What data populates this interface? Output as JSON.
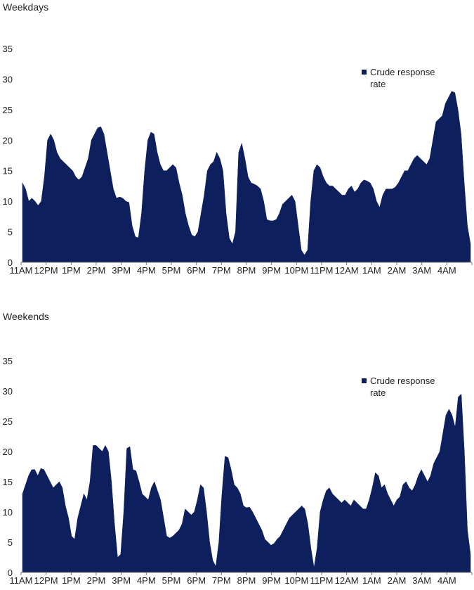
{
  "chart_data": [
    {
      "type": "area",
      "title": "Weekdays",
      "xlabel": "",
      "ylabel": "",
      "ylim": [
        0,
        35
      ],
      "yticks": [
        0,
        5,
        10,
        15,
        20,
        25,
        30,
        35
      ],
      "color": "#0d1f5c",
      "x_labels": [
        "11AM",
        "12PM",
        "1PM",
        "2PM",
        "3PM",
        "4PM",
        "5PM",
        "6PM",
        "7PM",
        "8PM",
        "9PM",
        "10PM",
        "11PM",
        "12AM",
        "1AM",
        "2AM",
        "3AM",
        "4AM"
      ],
      "legend": {
        "label_line1": "Crude response",
        "label_line2": "rate",
        "placement": "top-right"
      },
      "series": [
        {
          "name": "Crude response rate",
          "values": [
            13,
            12,
            10,
            10.5,
            10,
            9.3,
            10,
            14,
            20,
            21,
            20,
            18,
            17,
            16.5,
            16,
            15.5,
            15,
            14,
            13.5,
            14,
            15.5,
            17,
            20,
            21,
            22,
            22.2,
            21,
            18,
            15,
            12,
            10.5,
            10.7,
            10.5,
            10,
            9.8,
            6,
            4.2,
            4,
            8,
            15,
            20,
            21.3,
            21,
            18,
            16,
            15,
            15,
            15.5,
            16,
            15.5,
            13,
            11,
            8,
            6,
            4.5,
            4.2,
            5,
            8,
            11,
            15,
            16,
            16.5,
            18,
            17,
            15,
            8,
            4,
            3,
            5,
            18,
            19.5,
            17,
            14,
            13,
            12.8,
            12.5,
            12,
            10,
            7,
            6.8,
            6.8,
            7,
            8,
            9.5,
            10,
            10.5,
            11,
            10,
            6,
            2,
            1.2,
            2,
            10,
            15,
            16,
            15.5,
            14,
            13,
            12.5,
            12.5,
            12,
            11.5,
            11,
            11,
            12,
            12.5,
            11.5,
            12,
            13,
            13.5,
            13.3,
            13,
            12,
            10,
            9,
            11,
            12,
            12,
            12,
            12.3,
            13,
            14,
            15,
            15,
            16,
            17,
            17.5,
            17,
            16.5,
            16,
            17,
            20,
            23,
            23.5,
            24,
            26,
            27,
            28,
            27.8,
            25,
            21,
            13,
            6,
            3
          ]
        }
      ]
    },
    {
      "type": "area",
      "title": "Weekends",
      "xlabel": "",
      "ylabel": "",
      "ylim": [
        0,
        35
      ],
      "yticks": [
        0,
        5,
        10,
        15,
        20,
        25,
        30,
        35
      ],
      "color": "#0d1f5c",
      "x_labels": [
        "11AM",
        "12PM",
        "1PM",
        "2PM",
        "3PM",
        "4PM",
        "5PM",
        "6PM",
        "7PM",
        "8PM",
        "9PM",
        "10PM",
        "11PM",
        "12AM",
        "1AM",
        "2AM",
        "3AM",
        "4AM"
      ],
      "legend": {
        "label_line1": "Crude response",
        "label_line2": "rate",
        "placement": "top-right"
      },
      "series": [
        {
          "name": "Crude response rate",
          "values": [
            13,
            14.5,
            16,
            17,
            17,
            16,
            17.2,
            17,
            16,
            15,
            14,
            14.5,
            15,
            14,
            11,
            9,
            6,
            5.5,
            9,
            11,
            13,
            12,
            15,
            21,
            21,
            20.5,
            20,
            21,
            20,
            15,
            8,
            2.5,
            3,
            10,
            20.5,
            20.8,
            17,
            16.8,
            15,
            13,
            12.5,
            12,
            14,
            15,
            13.5,
            12,
            9,
            6,
            5.7,
            6,
            6.5,
            7,
            8,
            10.5,
            10,
            9.5,
            10,
            12,
            14.5,
            14,
            10,
            5,
            2,
            1,
            5,
            13,
            19.2,
            19,
            17,
            14.5,
            14,
            13,
            11,
            10.7,
            10.8,
            10,
            9,
            8,
            7,
            5.5,
            5,
            4.5,
            4.8,
            5.5,
            6,
            7,
            8,
            9,
            9.5,
            10,
            10.5,
            11,
            10.5,
            8,
            4,
            0.8,
            4,
            10,
            12,
            13.5,
            14,
            13,
            12.5,
            12,
            11.5,
            12,
            11.5,
            11,
            12,
            11.5,
            11,
            10.5,
            10.5,
            12,
            14,
            16.5,
            16,
            14,
            14.5,
            13,
            12,
            11,
            12,
            12.5,
            14.5,
            15,
            14,
            13.5,
            14.5,
            16,
            17,
            16,
            15,
            16,
            18,
            19,
            20,
            23,
            26,
            27,
            26,
            24,
            29,
            29.5,
            20,
            7,
            3
          ]
        }
      ]
    }
  ]
}
